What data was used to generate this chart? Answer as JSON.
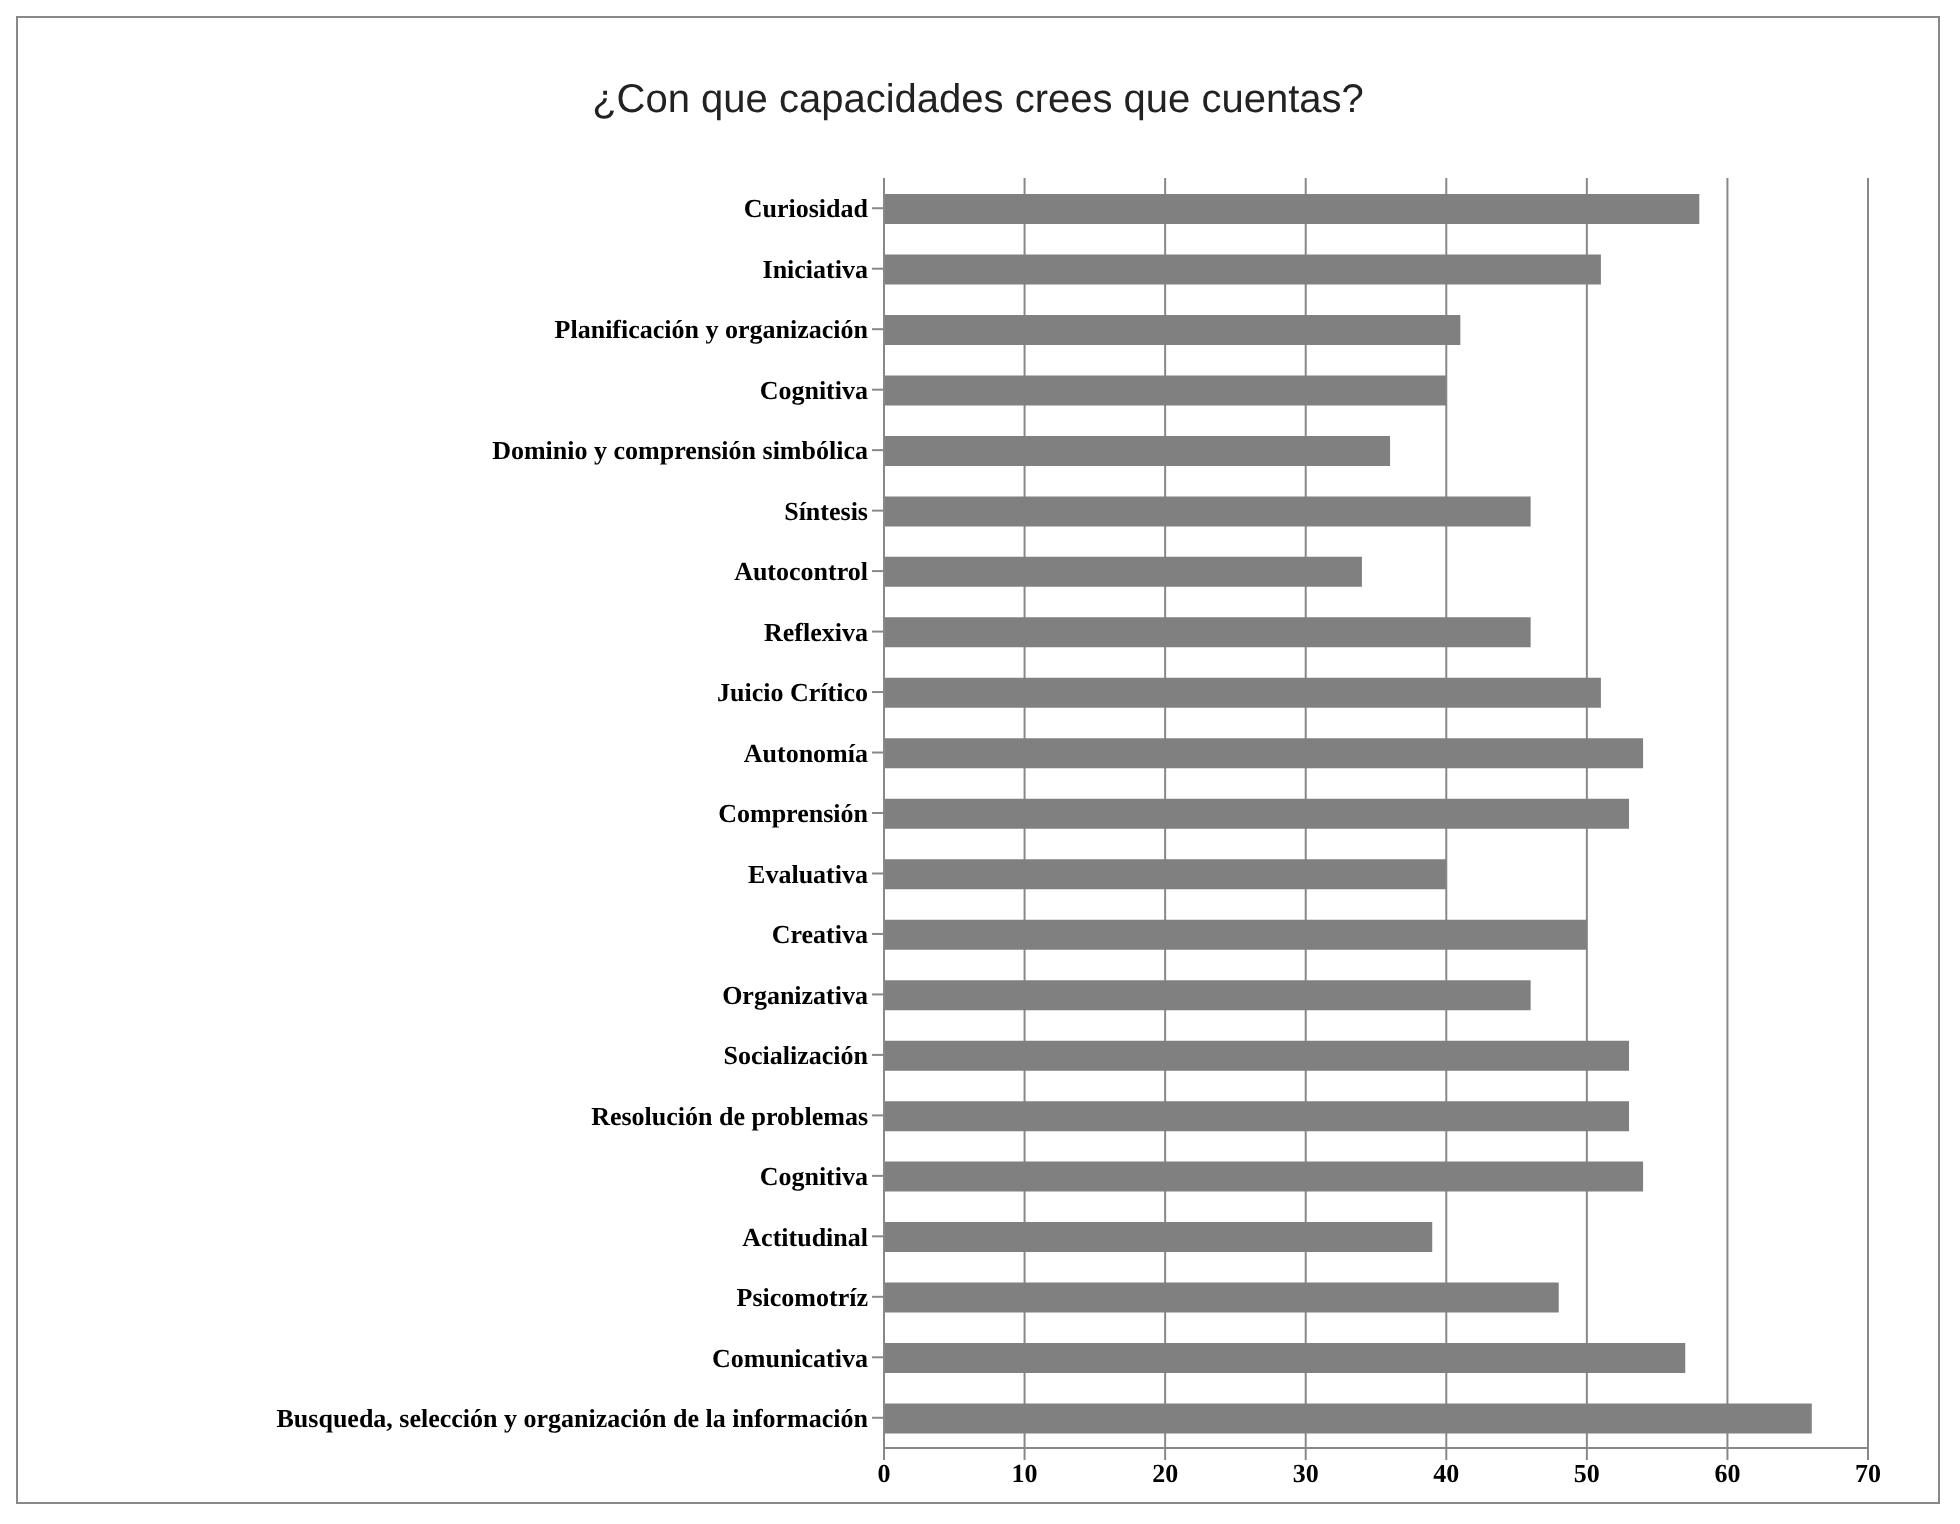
{
  "chart_data": {
    "type": "bar",
    "orientation": "horizontal",
    "title": "¿Con que capacidades crees que cuentas?",
    "categories": [
      "Curiosidad",
      "Iniciativa",
      "Planificación y organización",
      "Cognitiva",
      "Dominio y comprensión simbólica",
      "Síntesis",
      "Autocontrol",
      "Reflexiva",
      "Juicio Crítico",
      "Autonomía",
      "Comprensión",
      "Evaluativa",
      "Creativa",
      "Organizativa",
      "Socialización",
      "Resolución de problemas",
      "Cognitiva",
      "Actitudinal",
      "Psicomotríz",
      "Comunicativa",
      "Busqueda, selección y organización de la información"
    ],
    "values": [
      58,
      51,
      41,
      40,
      36,
      46,
      34,
      46,
      51,
      54,
      53,
      40,
      50,
      46,
      53,
      53,
      54,
      39,
      48,
      57,
      66
    ],
    "color": "#808080",
    "xlim": [
      0,
      70
    ],
    "xticks": [
      0,
      10,
      20,
      30,
      40,
      50,
      60,
      70
    ],
    "grid": "x",
    "legend": false
  }
}
